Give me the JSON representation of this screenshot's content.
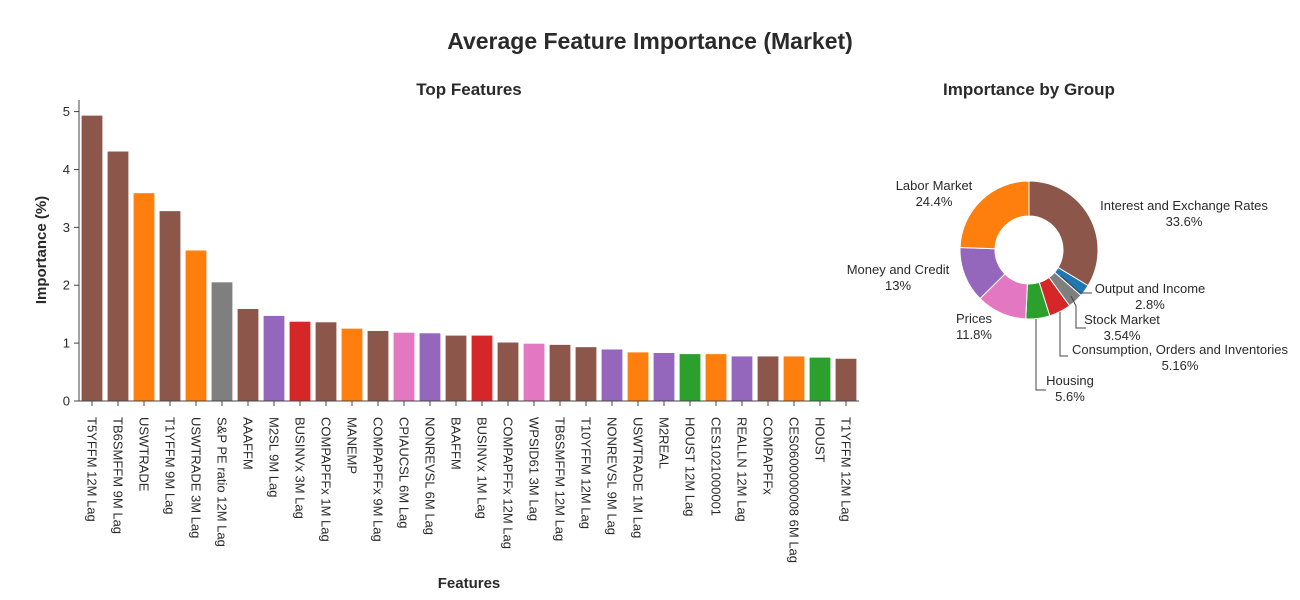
{
  "title": "Average Feature Importance (Market)",
  "colors": {
    "interest": "#8c564b",
    "labor": "#ff7f0e",
    "money": "#9467bd",
    "prices": "#e377c2",
    "housing": "#2ca02c",
    "consumption": "#d62728",
    "stock": "#7f7f7f",
    "output": "#1f77b4"
  },
  "chart_data": [
    {
      "type": "bar",
      "title": "Top Features",
      "xlabel": "Features",
      "ylabel": "Importance (%)",
      "ylim": [
        0,
        5.2
      ],
      "yticks": [
        0,
        1,
        2,
        3,
        4,
        5
      ],
      "grid": false,
      "categories": [
        "T5YFFM 12M Lag",
        "TB6SMFFM 9M Lag",
        "USWTRADE",
        "T1YFFM 9M Lag",
        "USWTRADE 3M Lag",
        "S&P PE ratio 12M Lag",
        "AAAFFM",
        "M2SL 9M Lag",
        "BUSINVx 3M Lag",
        "COMPAPFFx 1M Lag",
        "MANEMP",
        "COMPAPFFx 9M Lag",
        "CPIAUCSL 6M Lag",
        "NONREVSL 6M Lag",
        "BAAFFM",
        "BUSINVx 1M Lag",
        "COMPAPFFx 12M Lag",
        "WPSID61 3M Lag",
        "TB6SMFFM 12M Lag",
        "T10YFFM 12M Lag",
        "NONREVSL 9M Lag",
        "USWTRADE 1M Lag",
        "M2REAL",
        "HOUST 12M Lag",
        "CES1021000001",
        "REALLN 12M Lag",
        "COMPAPFFx",
        "CES0600000008 6M Lag",
        "HOUST",
        "T1YFFM 12M Lag"
      ],
      "values": [
        4.93,
        4.31,
        3.59,
        3.28,
        2.6,
        2.05,
        1.59,
        1.47,
        1.37,
        1.36,
        1.25,
        1.21,
        1.18,
        1.17,
        1.13,
        1.13,
        1.01,
        0.99,
        0.97,
        0.93,
        0.89,
        0.84,
        0.83,
        0.81,
        0.81,
        0.77,
        0.77,
        0.77,
        0.75,
        0.73
      ],
      "groups": [
        "interest",
        "interest",
        "labor",
        "interest",
        "labor",
        "stock",
        "interest",
        "money",
        "consumption",
        "interest",
        "labor",
        "interest",
        "prices",
        "money",
        "interest",
        "consumption",
        "interest",
        "prices",
        "interest",
        "interest",
        "money",
        "labor",
        "money",
        "housing",
        "labor",
        "money",
        "interest",
        "labor",
        "housing",
        "interest"
      ]
    },
    {
      "type": "pie",
      "title": "Importance by Group",
      "hole": true,
      "slices": [
        {
          "key": "interest",
          "label": "Interest and Exchange Rates",
          "value": 33.6,
          "text": "33.6%"
        },
        {
          "key": "output",
          "label": "Output and Income",
          "value": 2.8,
          "text": "2.8%"
        },
        {
          "key": "stock",
          "label": "Stock Market",
          "value": 3.54,
          "text": "3.54%"
        },
        {
          "key": "consumption",
          "label": "Consumption, Orders and Inventories",
          "value": 5.16,
          "text": "5.16%"
        },
        {
          "key": "housing",
          "label": "Housing",
          "value": 5.6,
          "text": "5.6%"
        },
        {
          "key": "prices",
          "label": "Prices",
          "value": 11.8,
          "text": "11.8%"
        },
        {
          "key": "money",
          "label": "Money and Credit",
          "value": 13,
          "text": "13%"
        },
        {
          "key": "labor",
          "label": "Labor Market",
          "value": 24.4,
          "text": "24.4%"
        }
      ]
    }
  ]
}
